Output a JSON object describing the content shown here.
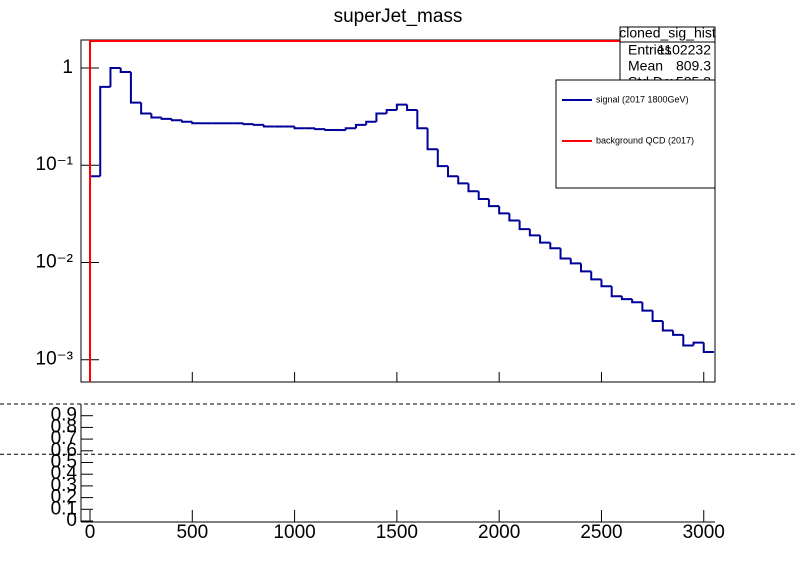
{
  "chart_data": {
    "type": "histogram",
    "title": "superJet_mass",
    "log_y": true,
    "xlim": [
      -44,
      3055
    ],
    "xticks": [
      0,
      500,
      1000,
      1500,
      2000,
      2500,
      3000
    ],
    "ylim": [
      0.00059,
      1.94
    ],
    "yticks": [
      {
        "value": 0.001,
        "label": "10⁻³"
      },
      {
        "value": 0.01,
        "label": "10⁻²"
      },
      {
        "value": 0.1,
        "label": "10⁻¹"
      },
      1
    ],
    "bins": [
      0,
      50,
      100,
      150,
      200,
      250,
      300,
      350,
      400,
      450,
      500,
      550,
      600,
      650,
      700,
      750,
      800,
      850,
      900,
      950,
      1000,
      1050,
      1100,
      1150,
      1200,
      1250,
      1300,
      1350,
      1400,
      1450,
      1500,
      1550,
      1600,
      1650,
      1700,
      1750,
      1800,
      1850,
      1900,
      1950,
      2000,
      2050,
      2100,
      2150,
      2200,
      2250,
      2300,
      2350,
      2400,
      2450,
      2500,
      2550,
      2600,
      2650,
      2700,
      2750,
      2800,
      2850,
      2900,
      2950,
      3000,
      3050
    ],
    "series": [
      {
        "name": "signal (2017 1800GeV)",
        "color": "#000099",
        "values": [
          0.077,
          0.64,
          1.0,
          0.91,
          0.44,
          0.34,
          0.31,
          0.3,
          0.29,
          0.28,
          0.27,
          0.27,
          0.27,
          0.27,
          0.27,
          0.265,
          0.26,
          0.25,
          0.25,
          0.25,
          0.24,
          0.24,
          0.235,
          0.23,
          0.23,
          0.24,
          0.26,
          0.28,
          0.34,
          0.37,
          0.42,
          0.37,
          0.24,
          0.146,
          0.098,
          0.077,
          0.065,
          0.054,
          0.045,
          0.038,
          0.032,
          0.027,
          0.022,
          0.019,
          0.016,
          0.014,
          0.011,
          0.0098,
          0.0081,
          0.0067,
          0.0057,
          0.0045,
          0.0042,
          0.0039,
          0.0032,
          0.0025,
          0.002,
          0.0018,
          0.0014,
          0.0015,
          0.0012
        ]
      },
      {
        "name": "background QCD (2017)",
        "color": "#ff0000",
        "bins": [
          0,
          3050
        ],
        "values": [
          1.9
        ]
      }
    ],
    "stats": {
      "title": "cloned_sig_hist",
      "rows": [
        [
          "Entries",
          "1102232"
        ],
        [
          "Mean",
          "809.3"
        ],
        [
          "Std Dev",
          "585.8"
        ]
      ]
    },
    "ratio": {
      "ylim": [
        0,
        1
      ],
      "yticks": [
        0,
        0.1,
        0.2,
        0.3,
        0.4,
        0.5,
        0.6,
        0.7,
        0.8,
        0.9
      ],
      "hlines": [
        1,
        0.57
      ]
    }
  }
}
